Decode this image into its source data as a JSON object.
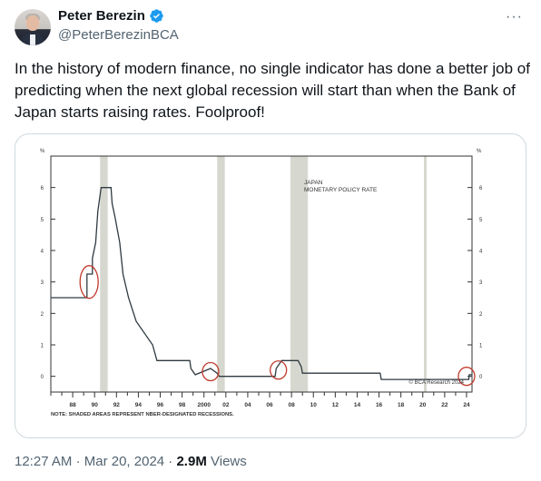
{
  "author": {
    "display_name": "Peter Berezin",
    "handle": "@PeterBerezinBCA"
  },
  "tweet": {
    "text": "In the history of modern finance, no single indicator has done a better job of predicting when the next global recession will start than when the Bank of Japan starts raising rates. Foolproof!"
  },
  "meta": {
    "time": "12:27 AM",
    "separator": "·",
    "date": "Mar 20, 2024",
    "views_count": "2.9M",
    "views_label": "Views"
  },
  "icons": {
    "verified": "verified-badge-icon",
    "more": "more-options-icon"
  },
  "colors": {
    "verified_blue": "#1d9bf0",
    "recession_shading": "#d6d8d0",
    "line": "#2f3a40",
    "circle": "#c0392b"
  },
  "chart_data": {
    "type": "line",
    "title": "JAPAN\nMONETARY POLICY RATE",
    "title_lines": [
      "JAPAN",
      "MONETARY POLICY RATE"
    ],
    "y_unit_left": "%",
    "y_unit_right": "%",
    "ylim": [
      -0.5,
      7
    ],
    "yticks": [
      0,
      1,
      2,
      3,
      4,
      5,
      6
    ],
    "xlim": [
      1986,
      2024.5
    ],
    "xticks": [
      1988,
      1990,
      1992,
      1994,
      1996,
      1998,
      2000,
      2002,
      2004,
      2006,
      2008,
      2010,
      2012,
      2014,
      2016,
      2018,
      2020,
      2022,
      2024
    ],
    "xtick_labels": [
      "88",
      "90",
      "92",
      "94",
      "96",
      "98",
      "2000",
      "02",
      "04",
      "06",
      "08",
      "10",
      "12",
      "14",
      "16",
      "18",
      "20",
      "22",
      "24"
    ],
    "note": "NOTE: SHADED AREAS REPRESENT NBER-DESIGNATED RECESSIONS.",
    "source": "© BCA Research 2024",
    "recessions": [
      [
        1990.5,
        1991.2
      ],
      [
        2001.2,
        2001.9
      ],
      [
        2007.9,
        2009.5
      ],
      [
        2020.1,
        2020.35
      ]
    ],
    "series": [
      {
        "values": [
          [
            1986.0,
            2.5
          ],
          [
            1987.1,
            2.5
          ],
          [
            1989.3,
            2.5
          ],
          [
            1989.3,
            3.25
          ],
          [
            1989.8,
            3.25
          ],
          [
            1989.8,
            3.75
          ],
          [
            1990.1,
            4.25
          ],
          [
            1990.3,
            5.25
          ],
          [
            1990.6,
            6.0
          ],
          [
            1991.5,
            6.0
          ],
          [
            1991.6,
            5.5
          ],
          [
            1991.9,
            5.0
          ],
          [
            1992.3,
            4.25
          ],
          [
            1992.6,
            3.25
          ],
          [
            1993.1,
            2.5
          ],
          [
            1993.8,
            1.75
          ],
          [
            1995.3,
            1.0
          ],
          [
            1995.7,
            0.5
          ],
          [
            1998.7,
            0.5
          ],
          [
            1998.8,
            0.25
          ],
          [
            1999.2,
            0.05
          ],
          [
            2000.6,
            0.25
          ],
          [
            2001.2,
            0.1
          ],
          [
            2001.4,
            0.0
          ],
          [
            2006.5,
            0.0
          ],
          [
            2006.6,
            0.25
          ],
          [
            2007.1,
            0.5
          ],
          [
            2008.6,
            0.5
          ],
          [
            2008.9,
            0.3
          ],
          [
            2009.0,
            0.1
          ],
          [
            2016.1,
            0.1
          ],
          [
            2016.2,
            -0.1
          ],
          [
            2024.2,
            -0.1
          ],
          [
            2024.25,
            0.05
          ],
          [
            2024.5,
            0.05
          ]
        ]
      }
    ],
    "highlighted_circles": [
      {
        "x": 1989.5,
        "y": 3.0
      },
      {
        "x": 2000.6,
        "y": 0.15
      },
      {
        "x": 2006.8,
        "y": 0.2
      },
      {
        "x": 2024.0,
        "y": 0.0
      }
    ]
  }
}
